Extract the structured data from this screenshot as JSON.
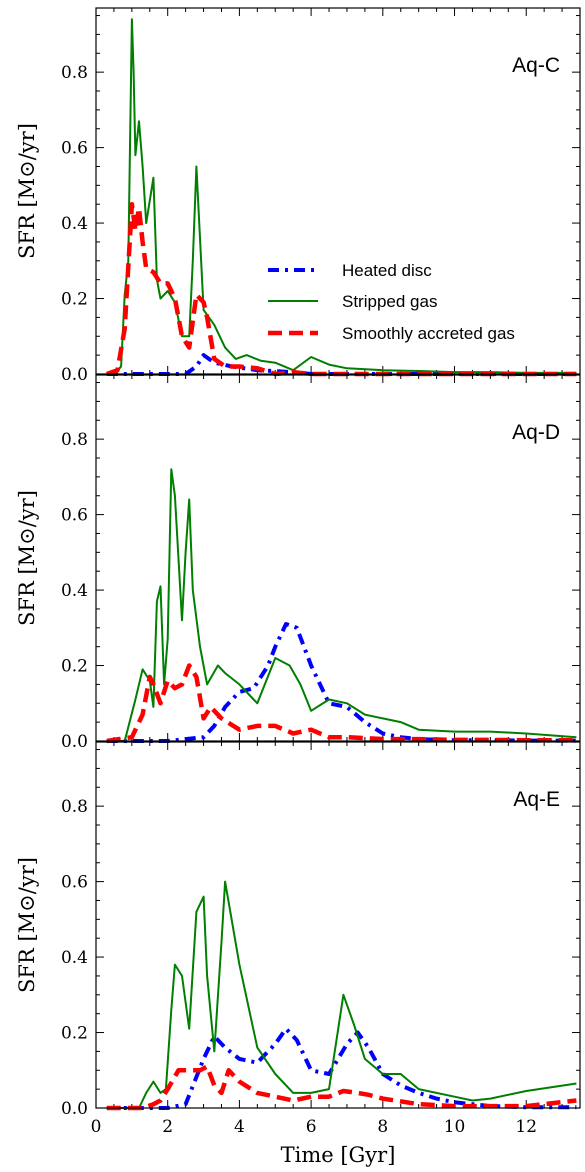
{
  "chart_data": {
    "type": "line",
    "xlabel": "Time [Gyr]",
    "ylabel": "SFR [M⊙/yr]",
    "xlim": [
      0,
      13.5
    ],
    "ylim": [
      0,
      0.97
    ],
    "x_ticks": [
      "0",
      "2",
      "4",
      "6",
      "8",
      "10",
      "12"
    ],
    "y_ticks": [
      "0.0",
      "0.2",
      "0.4",
      "0.6",
      "0.8"
    ],
    "legend": {
      "placement": "inside top panel, right",
      "entries": [
        "Heated disc",
        "Stripped gas",
        "Smoothly accreted gas"
      ]
    },
    "series_styles": [
      {
        "name": "Heated disc",
        "color": "#0000ff",
        "dash": "dash-dot"
      },
      {
        "name": "Stripped gas",
        "color": "#007f00",
        "dash": "solid"
      },
      {
        "name": "Smoothly accreted gas",
        "color": "#ff0000",
        "dash": "dashed"
      }
    ],
    "panels": [
      {
        "label": "Aq-C",
        "series": [
          {
            "name": "Heated disc",
            "x": [
              0.3,
              1,
              2,
              2.5,
              2.8,
              3.0,
              3.3,
              3.8,
              4.5,
              5.5,
              6,
              7,
              8,
              9,
              10,
              11,
              12,
              13.4
            ],
            "y": [
              0,
              0,
              0,
              0,
              0.02,
              0.05,
              0.03,
              0.02,
              0.01,
              0.005,
              0,
              0,
              0,
              0,
              0,
              0,
              0,
              0
            ]
          },
          {
            "name": "Stripped gas",
            "x": [
              0.3,
              0.5,
              0.7,
              0.8,
              0.9,
              1.0,
              1.05,
              1.1,
              1.2,
              1.3,
              1.4,
              1.6,
              1.7,
              1.8,
              2.0,
              2.2,
              2.4,
              2.6,
              2.7,
              2.8,
              3.0,
              3.3,
              3.6,
              3.9,
              4.2,
              4.6,
              5.0,
              5.5,
              6.0,
              6.5,
              7,
              8,
              9,
              10,
              11,
              12,
              13.4
            ],
            "y": [
              0,
              0,
              0.02,
              0.21,
              0.3,
              0.94,
              0.8,
              0.58,
              0.67,
              0.55,
              0.4,
              0.52,
              0.25,
              0.2,
              0.22,
              0.19,
              0.1,
              0.1,
              0.3,
              0.55,
              0.17,
              0.13,
              0.07,
              0.04,
              0.05,
              0.035,
              0.03,
              0.01,
              0.045,
              0.025,
              0.015,
              0.01,
              0.008,
              0.005,
              0.005,
              0.003,
              0.003
            ]
          },
          {
            "name": "Smoothly accreted gas",
            "x": [
              0.3,
              0.6,
              0.8,
              1.0,
              1.1,
              1.2,
              1.3,
              1.4,
              1.6,
              1.8,
              2.0,
              2.2,
              2.4,
              2.6,
              2.8,
              3.0,
              3.1,
              3.3,
              3.6,
              4.0,
              4.5,
              5,
              5.5,
              6,
              7,
              8,
              9,
              10,
              11,
              12,
              13.4
            ],
            "y": [
              0,
              0.01,
              0.12,
              0.45,
              0.38,
              0.44,
              0.35,
              0.28,
              0.27,
              0.24,
              0.24,
              0.2,
              0.1,
              0.07,
              0.21,
              0.19,
              0.15,
              0.04,
              0.02,
              0.02,
              0.015,
              0,
              0.005,
              0,
              0,
              0,
              0,
              0,
              0,
              0,
              0
            ]
          }
        ]
      },
      {
        "label": "Aq-D",
        "series": [
          {
            "name": "Heated disc",
            "x": [
              0.3,
              1,
              2,
              2.5,
              3.0,
              3.3,
              3.6,
              4.0,
              4.4,
              4.8,
              5.0,
              5.3,
              5.6,
              6.0,
              6.5,
              7.0,
              7.5,
              8,
              8.5,
              9,
              10,
              11,
              12,
              13.4
            ],
            "y": [
              0,
              0,
              0,
              0.005,
              0.01,
              0.04,
              0.09,
              0.13,
              0.14,
              0.2,
              0.25,
              0.31,
              0.3,
              0.2,
              0.1,
              0.09,
              0.05,
              0.02,
              0.01,
              0.005,
              0.002,
              0.002,
              0.001,
              0.001
            ]
          },
          {
            "name": "Stripped gas",
            "x": [
              0.3,
              0.8,
              1.1,
              1.3,
              1.5,
              1.6,
              1.7,
              1.8,
              1.9,
              2.0,
              2.1,
              2.2,
              2.4,
              2.5,
              2.6,
              2.7,
              2.9,
              3.1,
              3.4,
              3.6,
              4.0,
              4.5,
              5.0,
              5.4,
              5.7,
              6.0,
              6.5,
              7.0,
              7.5,
              8.0,
              8.5,
              9,
              10,
              11,
              12,
              13.4
            ],
            "y": [
              0,
              0,
              0.11,
              0.19,
              0.16,
              0.09,
              0.37,
              0.41,
              0.15,
              0.27,
              0.72,
              0.65,
              0.32,
              0.5,
              0.64,
              0.4,
              0.25,
              0.15,
              0.2,
              0.18,
              0.15,
              0.1,
              0.22,
              0.2,
              0.15,
              0.08,
              0.11,
              0.1,
              0.07,
              0.06,
              0.05,
              0.03,
              0.025,
              0.025,
              0.02,
              0.01
            ]
          },
          {
            "name": "Smoothly accreted gas",
            "x": [
              0.3,
              1.0,
              1.3,
              1.5,
              1.6,
              1.8,
              2.0,
              2.2,
              2.4,
              2.6,
              2.8,
              3.0,
              3.2,
              3.5,
              4.0,
              4.5,
              5.0,
              5.5,
              6.0,
              6.5,
              7,
              8,
              9,
              10,
              11,
              12,
              13.4
            ],
            "y": [
              0,
              0.01,
              0.07,
              0.17,
              0.15,
              0.1,
              0.16,
              0.14,
              0.15,
              0.2,
              0.17,
              0.06,
              0.09,
              0.06,
              0.03,
              0.04,
              0.04,
              0.02,
              0.03,
              0.01,
              0.01,
              0.005,
              0.005,
              0.003,
              0.003,
              0.002,
              0.002
            ]
          }
        ]
      },
      {
        "label": "Aq-E",
        "series": [
          {
            "name": "Heated disc",
            "x": [
              0.3,
              2,
              2.5,
              3.0,
              3.3,
              3.6,
              4.0,
              4.5,
              5.0,
              5.3,
              5.6,
              6.0,
              6.5,
              7.0,
              7.3,
              7.6,
              8.0,
              8.5,
              9,
              9.5,
              10,
              11,
              12,
              13.4
            ],
            "y": [
              0,
              0,
              0.01,
              0.13,
              0.19,
              0.16,
              0.13,
              0.12,
              0.17,
              0.21,
              0.18,
              0.1,
              0.09,
              0.17,
              0.2,
              0.16,
              0.09,
              0.06,
              0.04,
              0.025,
              0.015,
              0.005,
              0.002,
              0.002
            ]
          },
          {
            "name": "Stripped gas",
            "x": [
              0.3,
              1.2,
              1.4,
              1.6,
              1.8,
              1.95,
              2.1,
              2.2,
              2.4,
              2.6,
              2.8,
              3.0,
              3.1,
              3.3,
              3.5,
              3.6,
              4.0,
              4.5,
              5.0,
              5.5,
              6.0,
              6.5,
              6.9,
              7.2,
              7.5,
              8.0,
              8.5,
              9,
              10,
              10.5,
              11,
              12,
              13.4
            ],
            "y": [
              0,
              0,
              0.04,
              0.07,
              0.04,
              0.05,
              0.26,
              0.38,
              0.35,
              0.21,
              0.52,
              0.56,
              0.35,
              0.15,
              0.44,
              0.6,
              0.38,
              0.16,
              0.09,
              0.04,
              0.04,
              0.05,
              0.3,
              0.22,
              0.13,
              0.09,
              0.09,
              0.05,
              0.03,
              0.02,
              0.025,
              0.045,
              0.065
            ]
          },
          {
            "name": "Smoothly accreted gas",
            "x": [
              0.3,
              1.3,
              1.6,
              1.8,
              2.0,
              2.3,
              2.6,
              2.9,
              3.1,
              3.3,
              3.5,
              3.7,
              4.0,
              4.5,
              5.0,
              5.5,
              6.0,
              6.5,
              6.9,
              7.3,
              7.6,
              8,
              9,
              10,
              11,
              12,
              13.4
            ],
            "y": [
              0,
              0,
              0.01,
              0.02,
              0.05,
              0.1,
              0.1,
              0.1,
              0.11,
              0.06,
              0.04,
              0.1,
              0.07,
              0.04,
              0.03,
              0.02,
              0.03,
              0.03,
              0.045,
              0.04,
              0.035,
              0.025,
              0.01,
              0.005,
              0.005,
              0.005,
              0.02
            ]
          }
        ]
      }
    ]
  }
}
